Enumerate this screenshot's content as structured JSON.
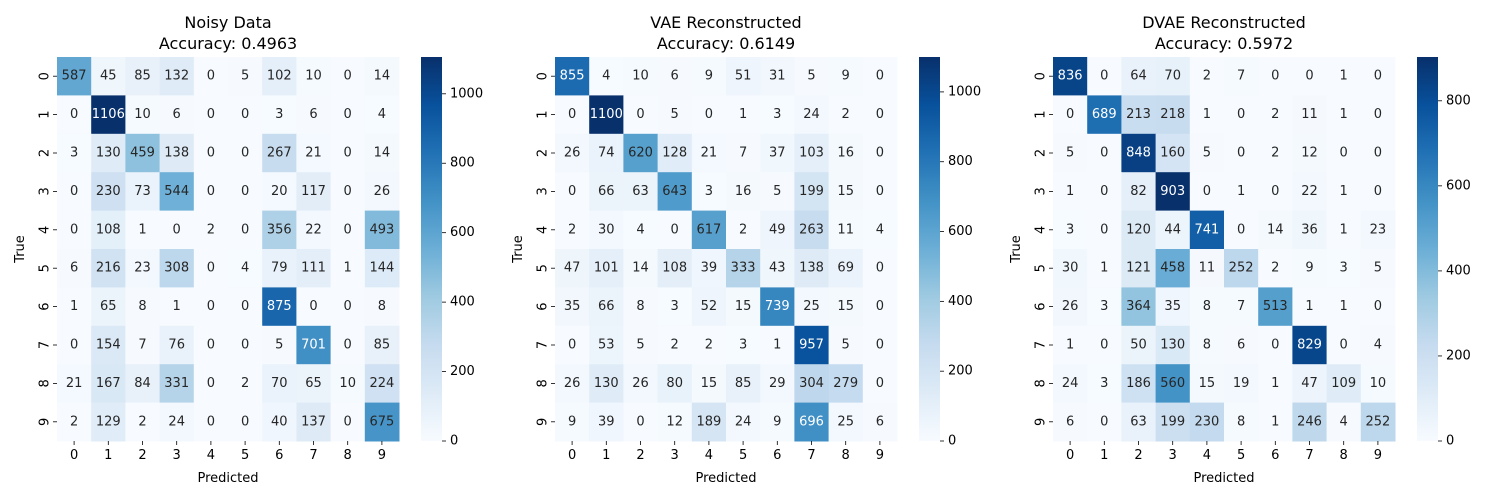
{
  "chart_data": [
    {
      "type": "heatmap",
      "title": "Noisy Data",
      "subtitle": "Accuracy: 0.4963",
      "xlabel": "Predicted",
      "ylabel": "True",
      "x_ticks": [
        "0",
        "1",
        "2",
        "3",
        "4",
        "5",
        "6",
        "7",
        "8",
        "9"
      ],
      "y_ticks": [
        "0",
        "1",
        "2",
        "3",
        "4",
        "5",
        "6",
        "7",
        "8",
        "9"
      ],
      "colormap": "Blues",
      "vmin": 0,
      "vmax": 1106,
      "colorbar_ticks": [
        0,
        200,
        400,
        600,
        800,
        1000
      ],
      "matrix": [
        [
          587,
          45,
          85,
          132,
          0,
          5,
          102,
          10,
          0,
          14
        ],
        [
          0,
          1106,
          10,
          6,
          0,
          0,
          3,
          6,
          0,
          4
        ],
        [
          3,
          130,
          459,
          138,
          0,
          0,
          267,
          21,
          0,
          14
        ],
        [
          0,
          230,
          73,
          544,
          0,
          0,
          20,
          117,
          0,
          26
        ],
        [
          0,
          108,
          1,
          0,
          2,
          0,
          356,
          22,
          0,
          493
        ],
        [
          6,
          216,
          23,
          308,
          0,
          4,
          79,
          111,
          1,
          144
        ],
        [
          1,
          65,
          8,
          1,
          0,
          0,
          875,
          0,
          0,
          8
        ],
        [
          0,
          154,
          7,
          76,
          0,
          0,
          5,
          701,
          0,
          85
        ],
        [
          21,
          167,
          84,
          331,
          0,
          2,
          70,
          65,
          10,
          224
        ],
        [
          2,
          129,
          2,
          24,
          0,
          0,
          40,
          137,
          0,
          675
        ]
      ]
    },
    {
      "type": "heatmap",
      "title": "VAE Reconstructed",
      "subtitle": "Accuracy: 0.6149",
      "xlabel": "Predicted",
      "ylabel": "True",
      "x_ticks": [
        "0",
        "1",
        "2",
        "3",
        "4",
        "5",
        "6",
        "7",
        "8",
        "9"
      ],
      "y_ticks": [
        "0",
        "1",
        "2",
        "3",
        "4",
        "5",
        "6",
        "7",
        "8",
        "9"
      ],
      "colormap": "Blues",
      "vmin": 0,
      "vmax": 1100,
      "colorbar_ticks": [
        0,
        200,
        400,
        600,
        800,
        1000
      ],
      "matrix": [
        [
          855,
          4,
          10,
          6,
          9,
          51,
          31,
          5,
          9,
          0
        ],
        [
          0,
          1100,
          0,
          5,
          0,
          1,
          3,
          24,
          2,
          0
        ],
        [
          26,
          74,
          620,
          128,
          21,
          7,
          37,
          103,
          16,
          0
        ],
        [
          0,
          66,
          63,
          643,
          3,
          16,
          5,
          199,
          15,
          0
        ],
        [
          2,
          30,
          4,
          0,
          617,
          2,
          49,
          263,
          11,
          4
        ],
        [
          47,
          101,
          14,
          108,
          39,
          333,
          43,
          138,
          69,
          0
        ],
        [
          35,
          66,
          8,
          3,
          52,
          15,
          739,
          25,
          15,
          0
        ],
        [
          0,
          53,
          5,
          2,
          2,
          3,
          1,
          957,
          5,
          0
        ],
        [
          26,
          130,
          26,
          80,
          15,
          85,
          29,
          304,
          279,
          0
        ],
        [
          9,
          39,
          0,
          12,
          189,
          24,
          9,
          696,
          25,
          6
        ]
      ]
    },
    {
      "type": "heatmap",
      "title": "DVAE Reconstructed",
      "subtitle": "Accuracy: 0.5972",
      "xlabel": "Predicted",
      "ylabel": "True",
      "x_ticks": [
        "0",
        "1",
        "2",
        "3",
        "4",
        "5",
        "6",
        "7",
        "8",
        "9"
      ],
      "y_ticks": [
        "0",
        "1",
        "2",
        "3",
        "4",
        "5",
        "6",
        "7",
        "8",
        "9"
      ],
      "colormap": "Blues",
      "vmin": 0,
      "vmax": 903,
      "colorbar_ticks": [
        0,
        200,
        400,
        600,
        800
      ],
      "matrix": [
        [
          836,
          0,
          64,
          70,
          2,
          7,
          0,
          0,
          1,
          0
        ],
        [
          0,
          689,
          213,
          218,
          1,
          0,
          2,
          11,
          1,
          0
        ],
        [
          5,
          0,
          848,
          160,
          5,
          0,
          2,
          12,
          0,
          0
        ],
        [
          1,
          0,
          82,
          903,
          0,
          1,
          0,
          22,
          1,
          0
        ],
        [
          3,
          0,
          120,
          44,
          741,
          0,
          14,
          36,
          1,
          23
        ],
        [
          30,
          1,
          121,
          458,
          11,
          252,
          2,
          9,
          3,
          5
        ],
        [
          26,
          3,
          364,
          35,
          8,
          7,
          513,
          1,
          1,
          0
        ],
        [
          1,
          0,
          50,
          130,
          8,
          6,
          0,
          829,
          0,
          4
        ],
        [
          24,
          3,
          186,
          560,
          15,
          19,
          1,
          47,
          109,
          10
        ],
        [
          6,
          0,
          63,
          199,
          230,
          8,
          1,
          246,
          4,
          252
        ]
      ]
    }
  ]
}
